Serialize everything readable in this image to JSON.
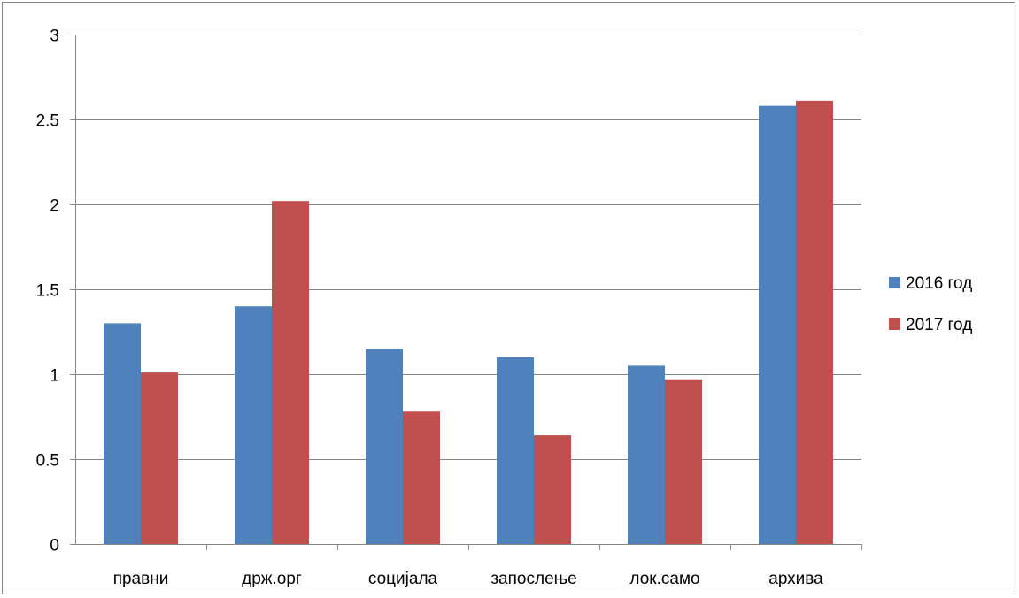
{
  "chart_data": {
    "type": "bar",
    "title": "",
    "xlabel": "",
    "ylabel": "",
    "ylim": [
      0,
      3
    ],
    "yticks": [
      0,
      0.5,
      1,
      1.5,
      2,
      2.5,
      3
    ],
    "ytick_labels": [
      "0",
      "0.5",
      "1",
      "1.5",
      "2",
      "2.5",
      "3"
    ],
    "grid": true,
    "legend_position": "right",
    "categories": [
      "правни",
      "држ.орг",
      "социјала",
      "запослење",
      "лок.само",
      "архива"
    ],
    "series": [
      {
        "name": "2016 год",
        "color": "#4f81bd",
        "values": [
          1.3,
          1.4,
          1.15,
          1.1,
          1.05,
          2.58
        ]
      },
      {
        "name": "2017 год",
        "color": "#c0504d",
        "values": [
          1.01,
          2.02,
          0.78,
          0.64,
          0.97,
          2.61
        ]
      }
    ]
  }
}
